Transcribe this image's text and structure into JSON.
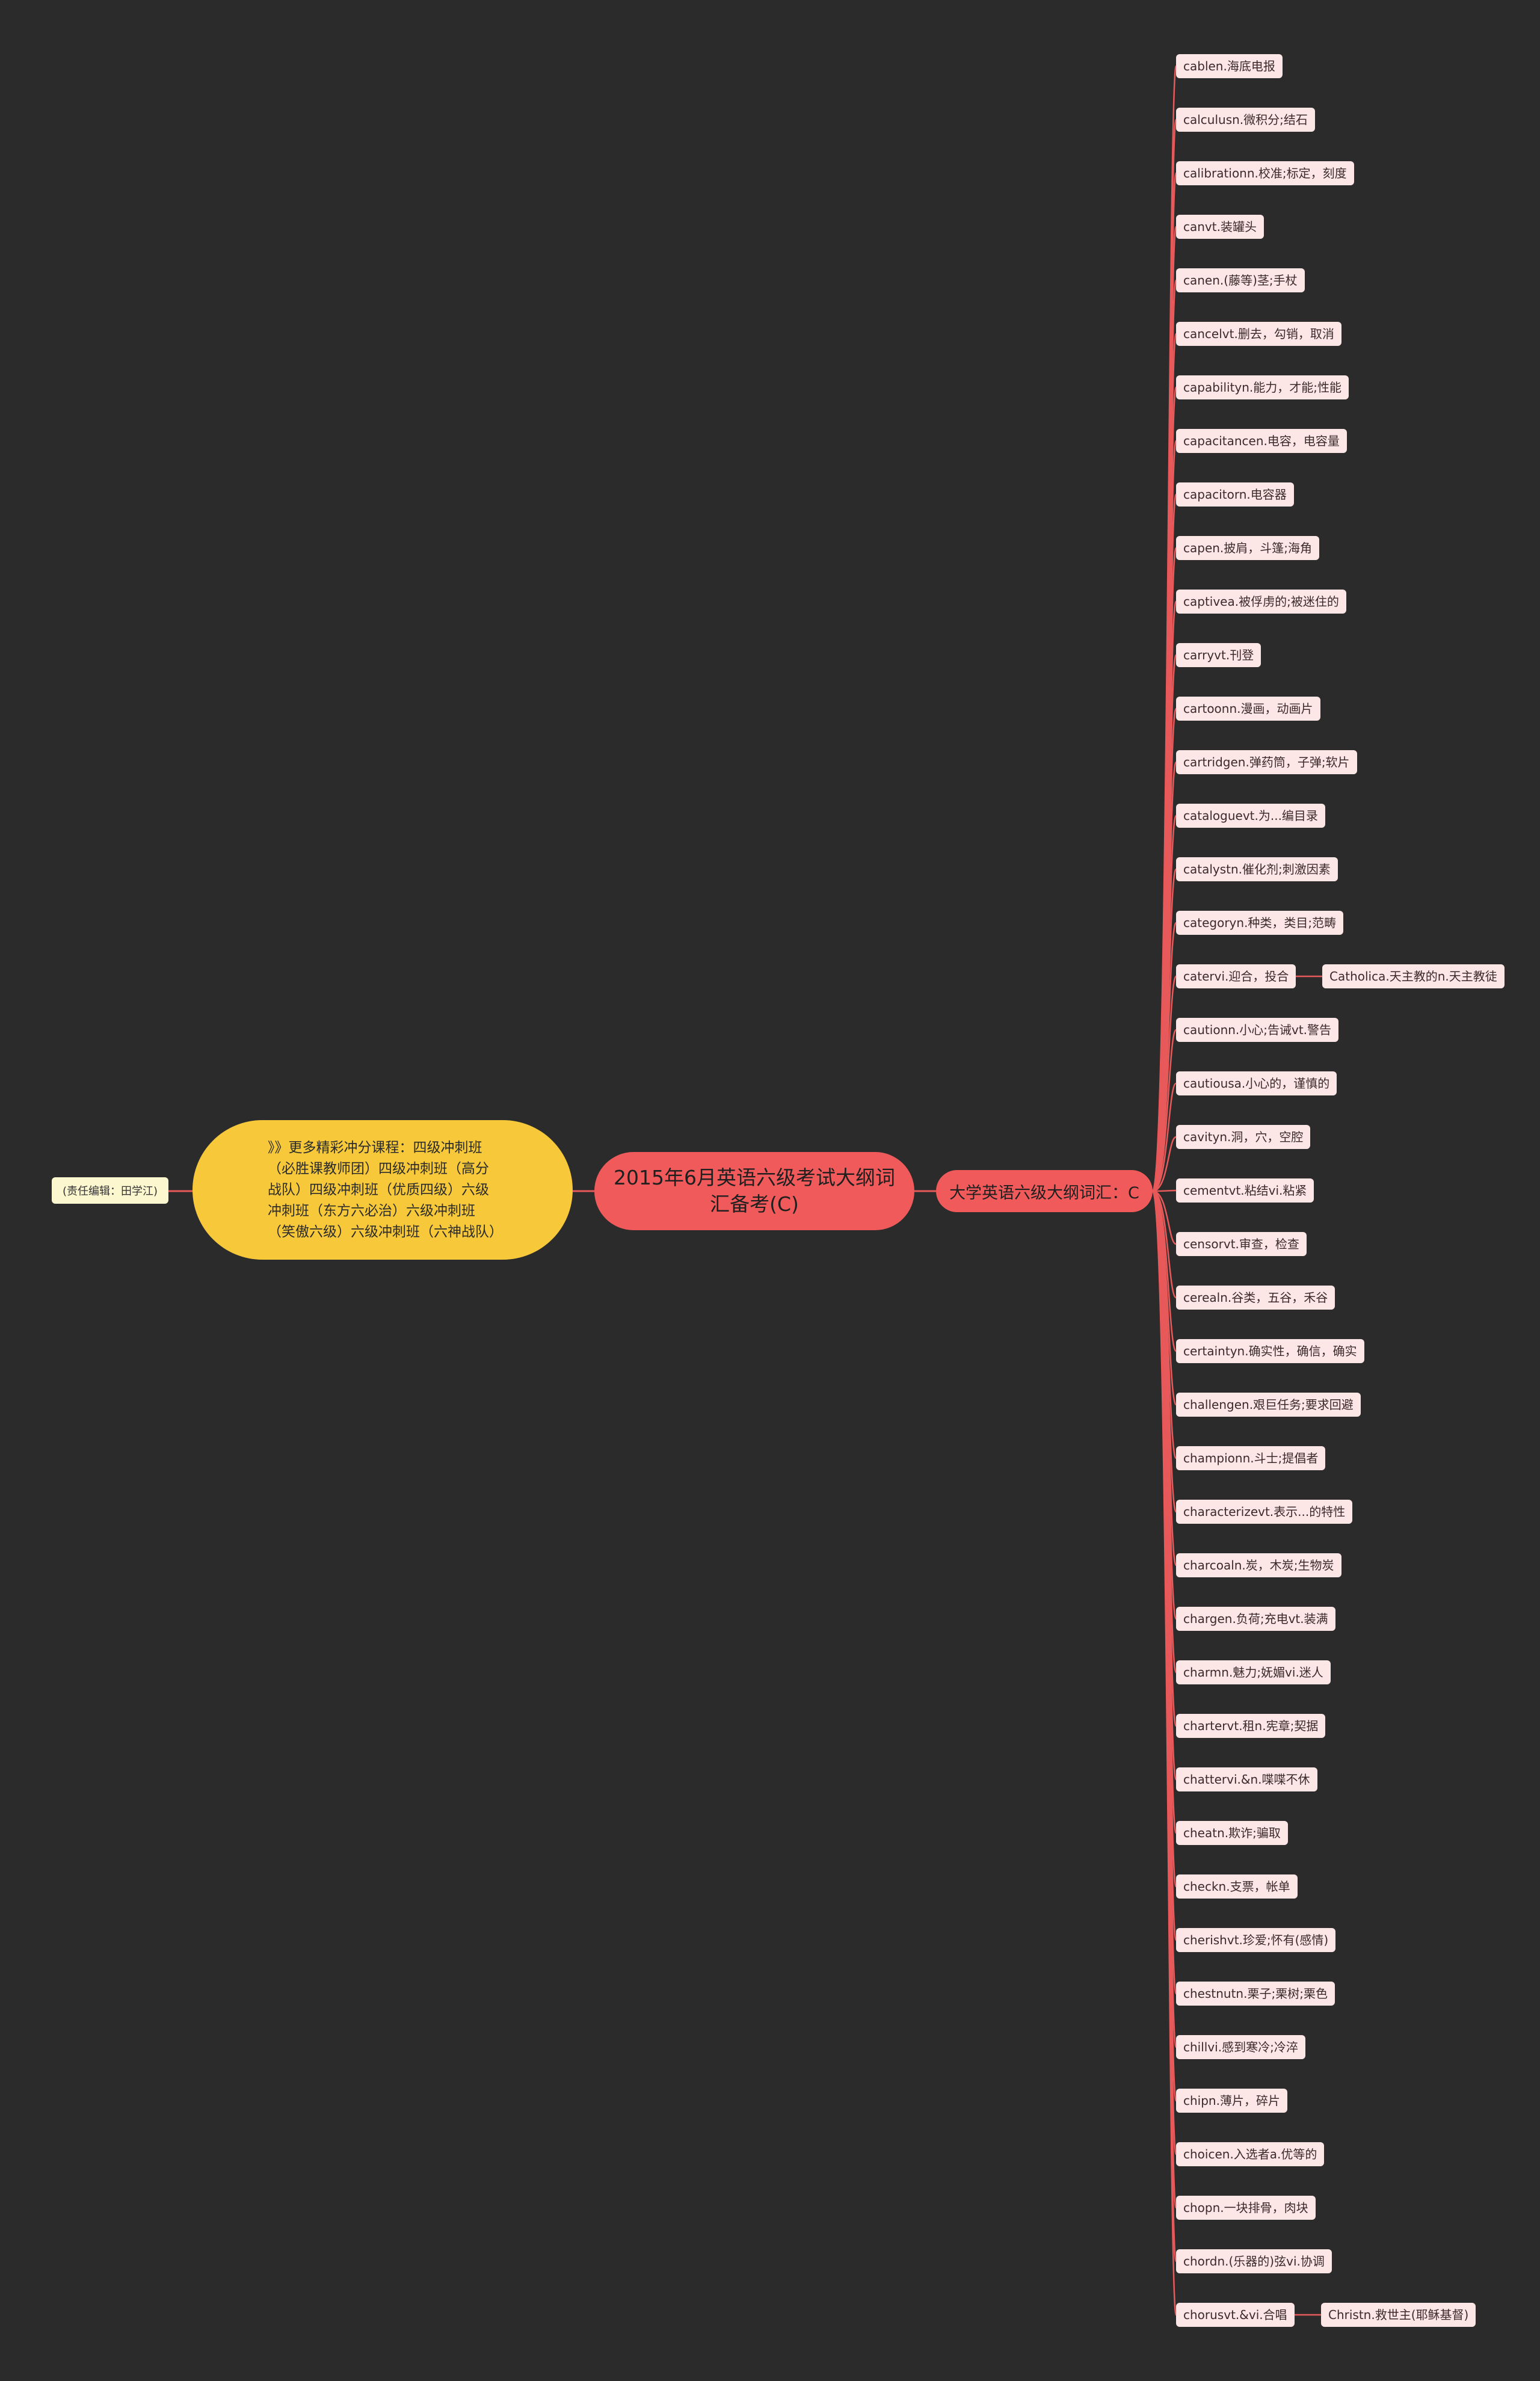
{
  "root": "2015年6月英语六级考试大纲词汇备考(C)",
  "branch": "大学英语六级大纲词汇：C",
  "promo": "》》更多精彩冲分课程：四级冲刺班（必胜课教师团）四级冲刺班（高分战队）四级冲刺班（优质四级）六级冲刺班（东方六必治）六级冲刺班（笑傲六级）六级冲刺班（六神战队）",
  "editor": "(责任编辑：田学江)",
  "leaves": [
    {
      "text": "cablen.海底电报"
    },
    {
      "text": "calculusn.微积分;结石"
    },
    {
      "text": "calibrationn.校准;标定，刻度"
    },
    {
      "text": "canvt.装罐头"
    },
    {
      "text": "canen.(藤等)茎;手杖"
    },
    {
      "text": "cancelvt.删去，勾销，取消"
    },
    {
      "text": "capabilityn.能力，才能;性能"
    },
    {
      "text": "capacitancen.电容，电容量"
    },
    {
      "text": "capacitorn.电容器"
    },
    {
      "text": "capen.披肩，斗篷;海角"
    },
    {
      "text": "captivea.被俘虏的;被迷住的"
    },
    {
      "text": "carryvt.刊登"
    },
    {
      "text": "cartoonn.漫画，动画片"
    },
    {
      "text": "cartridgen.弹药筒，子弹;软片"
    },
    {
      "text": "cataloguevt.为...编目录"
    },
    {
      "text": "catalystn.催化剂;刺激因素"
    },
    {
      "text": "categoryn.种类，类目;范畴"
    },
    {
      "text": "catervi.迎合，投合",
      "child": "Catholica.天主教的n.天主教徒"
    },
    {
      "text": "cautionn.小心;告诫vt.警告"
    },
    {
      "text": "cautiousa.小心的，谨慎的"
    },
    {
      "text": "cavityn.洞，穴，空腔"
    },
    {
      "text": "cementvt.粘结vi.粘紧"
    },
    {
      "text": "censorvt.审查，检查"
    },
    {
      "text": "cerealn.谷类，五谷，禾谷"
    },
    {
      "text": "certaintyn.确实性，确信，确实"
    },
    {
      "text": "challengen.艰巨任务;要求回避"
    },
    {
      "text": "championn.斗士;提倡者"
    },
    {
      "text": "characterizevt.表示...的特性"
    },
    {
      "text": "charcoaln.炭，木炭;生物炭"
    },
    {
      "text": "chargen.负荷;充电vt.装满"
    },
    {
      "text": "charmn.魅力;妩媚vi.迷人"
    },
    {
      "text": "chartervt.租n.宪章;契据"
    },
    {
      "text": "chattervi.&n.喋喋不休"
    },
    {
      "text": "cheatn.欺诈;骗取"
    },
    {
      "text": "checkn.支票，帐单"
    },
    {
      "text": "cherishvt.珍爱;怀有(感情)"
    },
    {
      "text": "chestnutn.栗子;栗树;栗色"
    },
    {
      "text": "chillvi.感到寒冷;冷淬"
    },
    {
      "text": "chipn.薄片，碎片"
    },
    {
      "text": "choicen.入选者a.优等的"
    },
    {
      "text": "chopn.一块排骨，肉块"
    },
    {
      "text": "chordn.(乐器的)弦vi.协调"
    },
    {
      "text": "chorusvt.&vi.合唱",
      "child": "Christn.救世主(耶稣基督)"
    }
  ],
  "colors": {
    "background": "#2b2b2b",
    "root": "#f05a5b",
    "promo": "#f6c83a",
    "leaf": "#fde7e6",
    "editor": "#fdf7cf",
    "line": "#e8595a"
  }
}
